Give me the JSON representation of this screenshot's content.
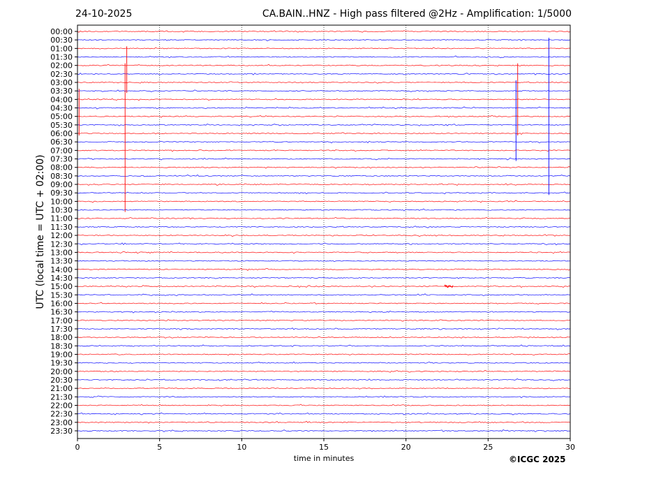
{
  "header": {
    "date": "24-10-2025",
    "title": "CA.BAIN..HNZ - High pass filtered @2Hz - Amplification: 1/5000"
  },
  "footer": {
    "copyright": "©ICGC 2025"
  },
  "chart_data": {
    "type": "line",
    "subtype": "helicorder",
    "xlabel": "time in minutes",
    "ylabel": "UTC (local time = UTC + 02:00)",
    "xlim": [
      0,
      30
    ],
    "x_ticks": [
      "0",
      "5",
      "10",
      "15",
      "20",
      "25",
      "30"
    ],
    "grid": "vertical dotted at every 5 minutes",
    "trace_colors": [
      "#ff0000",
      "#0000ff"
    ],
    "traces": [
      "00:00",
      "00:30",
      "01:00",
      "01:30",
      "02:00",
      "02:30",
      "03:00",
      "03:30",
      "04:00",
      "04:30",
      "05:00",
      "05:30",
      "06:00",
      "06:30",
      "07:00",
      "07:30",
      "08:00",
      "08:30",
      "09:00",
      "09:30",
      "10:00",
      "10:30",
      "11:00",
      "11:30",
      "12:00",
      "12:30",
      "13:00",
      "13:30",
      "14:00",
      "14:30",
      "15:00",
      "15:30",
      "16:00",
      "16:30",
      "17:00",
      "17:30",
      "18:00",
      "18:30",
      "19:00",
      "19:30",
      "20:00",
      "20:30",
      "21:00",
      "21:30",
      "22:00",
      "22:30",
      "23:00",
      "23:30"
    ],
    "events": [
      {
        "minute": 3.0,
        "from": "01:00",
        "to": "03:30",
        "color": "#ff0000"
      },
      {
        "minute": 2.9,
        "from": "02:00",
        "to": "10:30",
        "color": "#ff0000"
      },
      {
        "minute": 0.1,
        "from": "03:30",
        "to": "06:00",
        "color": "#ff0000"
      },
      {
        "minute": 26.7,
        "from": "03:00",
        "to": "07:30",
        "color": "#0000ff"
      },
      {
        "minute": 26.8,
        "from": "02:00",
        "to": "06:00",
        "color": "#ff0000"
      },
      {
        "minute": 28.7,
        "from": "00:30",
        "to": "09:30",
        "color": "#0000ff"
      },
      {
        "minute": 22.6,
        "from": "15:00",
        "to": "15:00",
        "color": "#ff0000"
      }
    ]
  }
}
